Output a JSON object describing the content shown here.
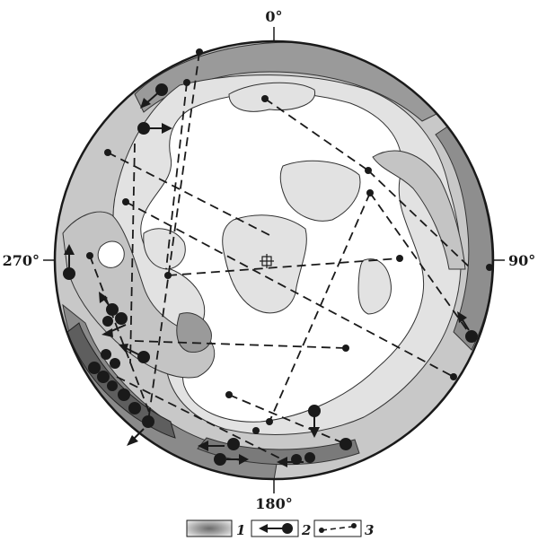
{
  "azimuth_labels": {
    "north": "0°",
    "east": "90°",
    "south": "180°",
    "west": "270°"
  },
  "legend": {
    "item_1": "1",
    "item_2": "2",
    "item_3": "3"
  },
  "colors": {
    "contour_fill_light": "#e2e2e2",
    "contour_fill_mid": "#c4c4c4",
    "contour_fill_dark": "#9a9a9a",
    "contour_fill_darkest": "#6a6a6a",
    "outline": "#1a1a1a"
  }
}
